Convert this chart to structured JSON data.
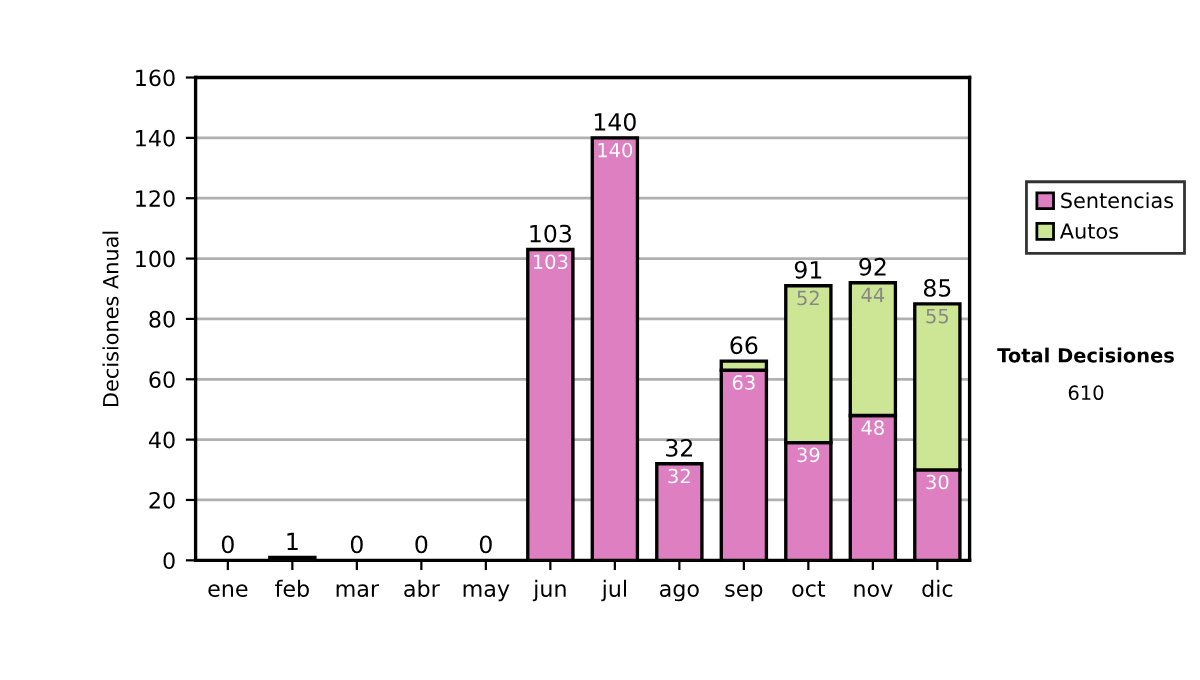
{
  "chart_data": {
    "type": "bar",
    "stacked": true,
    "ylabel": "Decisiones Anual",
    "categories": [
      "ene",
      "feb",
      "mar",
      "abr",
      "may",
      "jun",
      "jul",
      "ago",
      "sep",
      "oct",
      "nov",
      "dic"
    ],
    "series": [
      {
        "name": "Sentencias",
        "color": "#dd7fc0",
        "values": [
          0,
          1,
          0,
          0,
          0,
          103,
          140,
          32,
          63,
          39,
          48,
          30
        ],
        "value_labels": [
          null,
          null,
          null,
          null,
          null,
          "103",
          "140",
          "32",
          "63",
          "39",
          "48",
          "30"
        ]
      },
      {
        "name": "Autos",
        "color": "#cde696",
        "values": [
          0,
          0,
          0,
          0,
          0,
          0,
          0,
          0,
          3,
          52,
          44,
          55
        ],
        "value_labels": [
          null,
          null,
          null,
          null,
          null,
          null,
          null,
          null,
          null,
          "52",
          "44",
          "55"
        ]
      }
    ],
    "totals": [
      "0",
      "1",
      "0",
      "0",
      "0",
      "103",
      "140",
      "32",
      "66",
      "91",
      "92",
      "85"
    ],
    "ylim": [
      0,
      160
    ],
    "yticks": [
      0,
      20,
      40,
      60,
      80,
      100,
      120,
      140,
      160
    ],
    "grid": "y",
    "legend": "right",
    "annotations": [
      "Total Decisiones",
      "610"
    ]
  }
}
